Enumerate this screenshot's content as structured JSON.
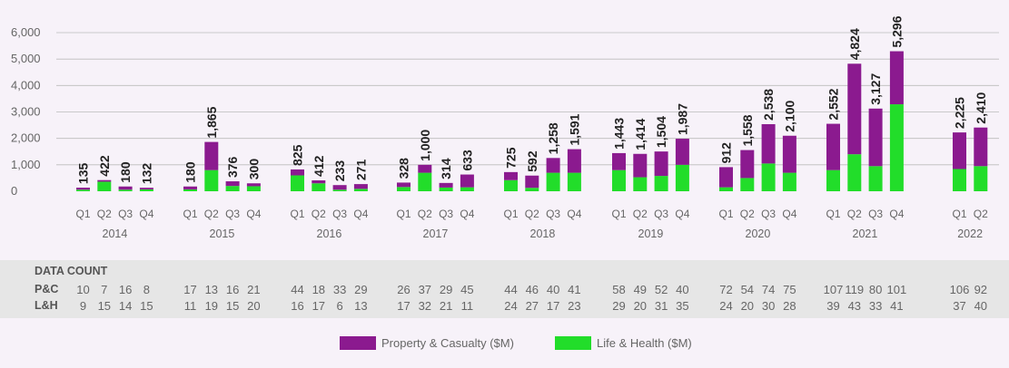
{
  "chart_data": {
    "type": "bar",
    "stacked": true,
    "ylim": [
      0,
      6000
    ],
    "yticks": [
      "0",
      "1,000",
      "2,000",
      "3,000",
      "4,000",
      "5,000",
      "6,000"
    ],
    "ytick_values": [
      0,
      1000,
      2000,
      3000,
      4000,
      5000,
      6000
    ],
    "grid": true,
    "legend_position": "bottom",
    "groups": [
      {
        "year": "2014",
        "quarters": [
          "Q1",
          "Q2",
          "Q3",
          "Q4"
        ],
        "totals": [
          "135",
          "422",
          "180",
          "132"
        ],
        "pc": [
          75,
          60,
          120,
          62
        ],
        "lh": [
          60,
          362,
          60,
          70
        ],
        "pc_count": [
          "10",
          "7",
          "16",
          "8"
        ],
        "lh_count": [
          "9",
          "15",
          "14",
          "15"
        ]
      },
      {
        "year": "2015",
        "quarters": [
          "Q1",
          "Q2",
          "Q3",
          "Q4"
        ],
        "totals": [
          "180",
          "1,865",
          "376",
          "300"
        ],
        "pc": [
          110,
          1065,
          176,
          110
        ],
        "lh": [
          70,
          800,
          200,
          190
        ],
        "pc_count": [
          "17",
          "13",
          "16",
          "21"
        ],
        "lh_count": [
          "11",
          "19",
          "15",
          "20"
        ]
      },
      {
        "year": "2016",
        "quarters": [
          "Q1",
          "Q2",
          "Q3",
          "Q4"
        ],
        "totals": [
          "825",
          "412",
          "233",
          "271"
        ],
        "pc": [
          225,
          112,
          173,
          181
        ],
        "lh": [
          600,
          300,
          60,
          90
        ],
        "pc_count": [
          "44",
          "18",
          "33",
          "29"
        ],
        "lh_count": [
          "16",
          "17",
          "6",
          "13"
        ]
      },
      {
        "year": "2017",
        "quarters": [
          "Q1",
          "Q2",
          "Q3",
          "Q4"
        ],
        "totals": [
          "328",
          "1,000",
          "314",
          "633"
        ],
        "pc": [
          168,
          300,
          174,
          483
        ],
        "lh": [
          160,
          700,
          140,
          150
        ],
        "pc_count": [
          "26",
          "37",
          "29",
          "45"
        ],
        "lh_count": [
          "17",
          "32",
          "21",
          "11"
        ]
      },
      {
        "year": "2018",
        "quarters": [
          "Q1",
          "Q2",
          "Q3",
          "Q4"
        ],
        "totals": [
          "725",
          "592",
          "1,258",
          "1,591"
        ],
        "pc": [
          305,
          462,
          558,
          891
        ],
        "lh": [
          420,
          130,
          700,
          700
        ],
        "pc_count": [
          "44",
          "46",
          "40",
          "41"
        ],
        "lh_count": [
          "24",
          "27",
          "17",
          "23"
        ]
      },
      {
        "year": "2019",
        "quarters": [
          "Q1",
          "Q2",
          "Q3",
          "Q4"
        ],
        "totals": [
          "1,443",
          "1,414",
          "1,504",
          "1,987"
        ],
        "pc": [
          643,
          884,
          924,
          987
        ],
        "lh": [
          800,
          530,
          580,
          1000
        ],
        "pc_count": [
          "58",
          "49",
          "52",
          "40"
        ],
        "lh_count": [
          "29",
          "20",
          "31",
          "35"
        ]
      },
      {
        "year": "2020",
        "quarters": [
          "Q1",
          "Q2",
          "Q3",
          "Q4"
        ],
        "totals": [
          "912",
          "1,558",
          "2,538",
          "2,100"
        ],
        "pc": [
          762,
          1058,
          1488,
          1400
        ],
        "lh": [
          150,
          500,
          1050,
          700
        ],
        "pc_count": [
          "72",
          "54",
          "74",
          "75"
        ],
        "lh_count": [
          "24",
          "20",
          "30",
          "28"
        ]
      },
      {
        "year": "2021",
        "quarters": [
          "Q1",
          "Q2",
          "Q3",
          "Q4"
        ],
        "totals": [
          "2,552",
          "4,824",
          "3,127",
          "5,296"
        ],
        "pc": [
          1752,
          3424,
          2177,
          2006
        ],
        "lh": [
          800,
          1400,
          950,
          3290
        ],
        "pc_count": [
          "107",
          "119",
          "80",
          "101"
        ],
        "lh_count": [
          "39",
          "43",
          "33",
          "41"
        ]
      },
      {
        "year": "2022",
        "quarters": [
          "Q1",
          "Q2"
        ],
        "totals": [
          "2,225",
          "2,410"
        ],
        "pc": [
          1385,
          1460
        ],
        "lh": [
          840,
          950
        ],
        "pc_count": [
          "106",
          "92"
        ],
        "lh_count": [
          "37",
          "40"
        ]
      }
    ],
    "series": [
      {
        "name": "Property & Casualty ($M)",
        "color": "#8b1a8f"
      },
      {
        "name": "Life & Health ($M)",
        "color": "#22dd2a"
      }
    ]
  },
  "data_count": {
    "title": "DATA COUNT",
    "pc_label": "P&C",
    "lh_label": "L&H"
  }
}
